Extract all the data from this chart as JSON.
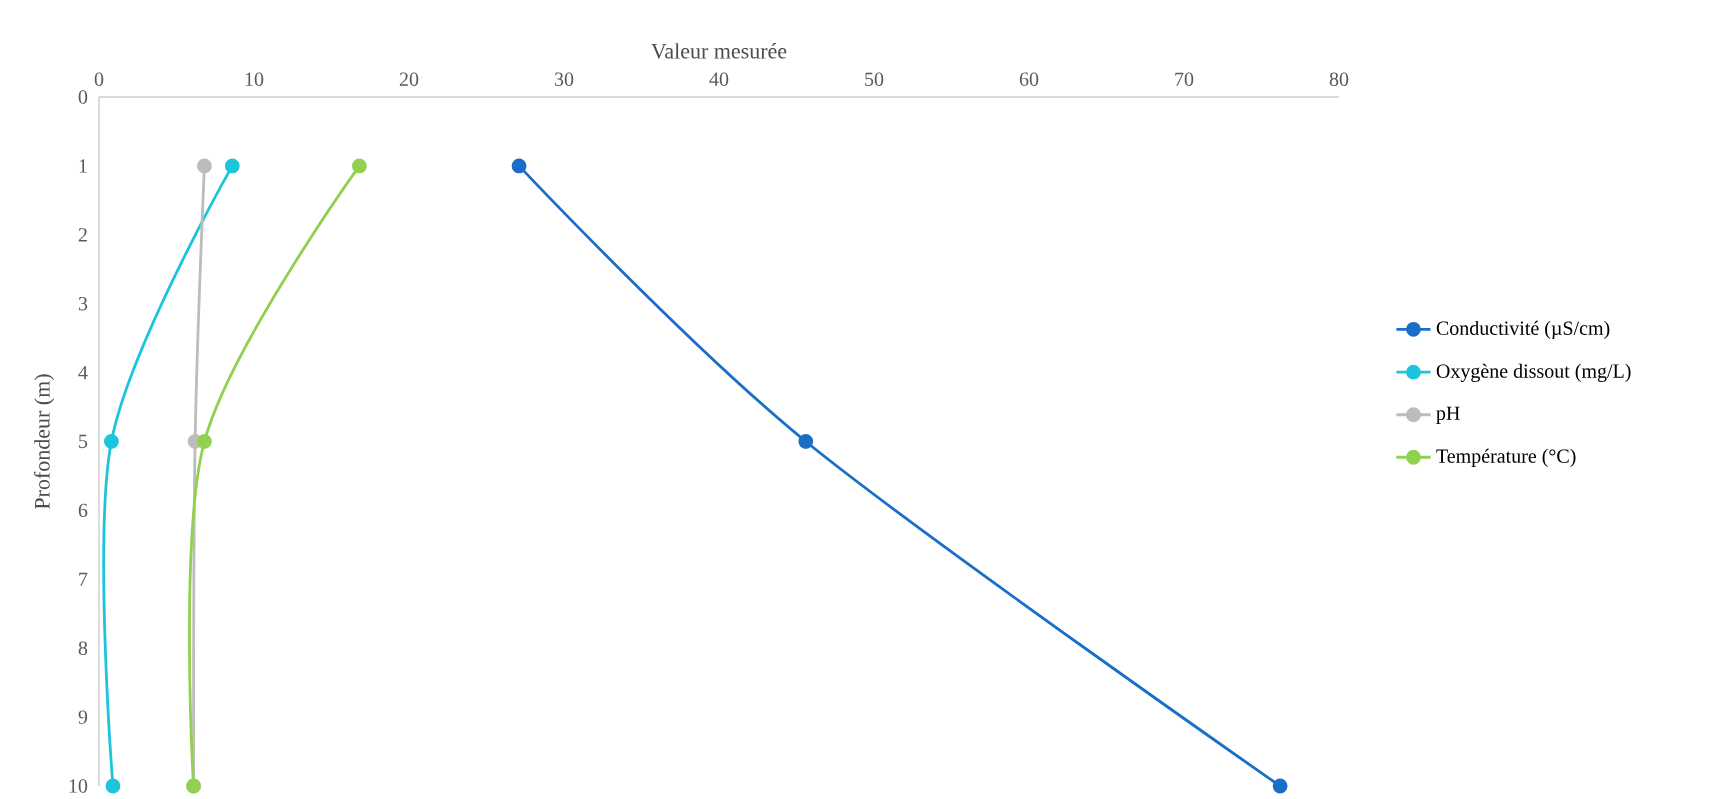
{
  "chart_data": {
    "type": "line",
    "xlabel": "Valeur mesurée",
    "ylabel": "Profondeur (m)",
    "xlim": [
      0,
      80
    ],
    "xticks": [
      0,
      10,
      20,
      30,
      40,
      50,
      60,
      70,
      80
    ],
    "ylim": [
      10,
      0
    ],
    "yticks": [
      0,
      1,
      2,
      3,
      4,
      5,
      6,
      7,
      8,
      9,
      10
    ],
    "marker": "circle",
    "line_style": "solid",
    "grid": false,
    "legend": "right",
    "series": [
      {
        "name": "Conductivité (µS/cm)",
        "color": "#1a6ec8",
        "x": [
          27.1,
          45.6,
          76.2
        ],
        "values": [
          1,
          5,
          10
        ]
      },
      {
        "name": "Oxygène dissout (mg/L)",
        "color": "#1cc4dc",
        "x": [
          8.6,
          0.8,
          0.9
        ],
        "values": [
          1,
          5,
          10
        ]
      },
      {
        "name": "pH",
        "color": "#bcbcbc",
        "x": [
          6.8,
          6.2,
          6.1
        ],
        "values": [
          1,
          5,
          10
        ]
      },
      {
        "name": "Température (°C)",
        "color": "#92d050",
        "x": [
          16.8,
          6.8,
          6.1
        ],
        "values": [
          1,
          5,
          10
        ]
      }
    ]
  }
}
